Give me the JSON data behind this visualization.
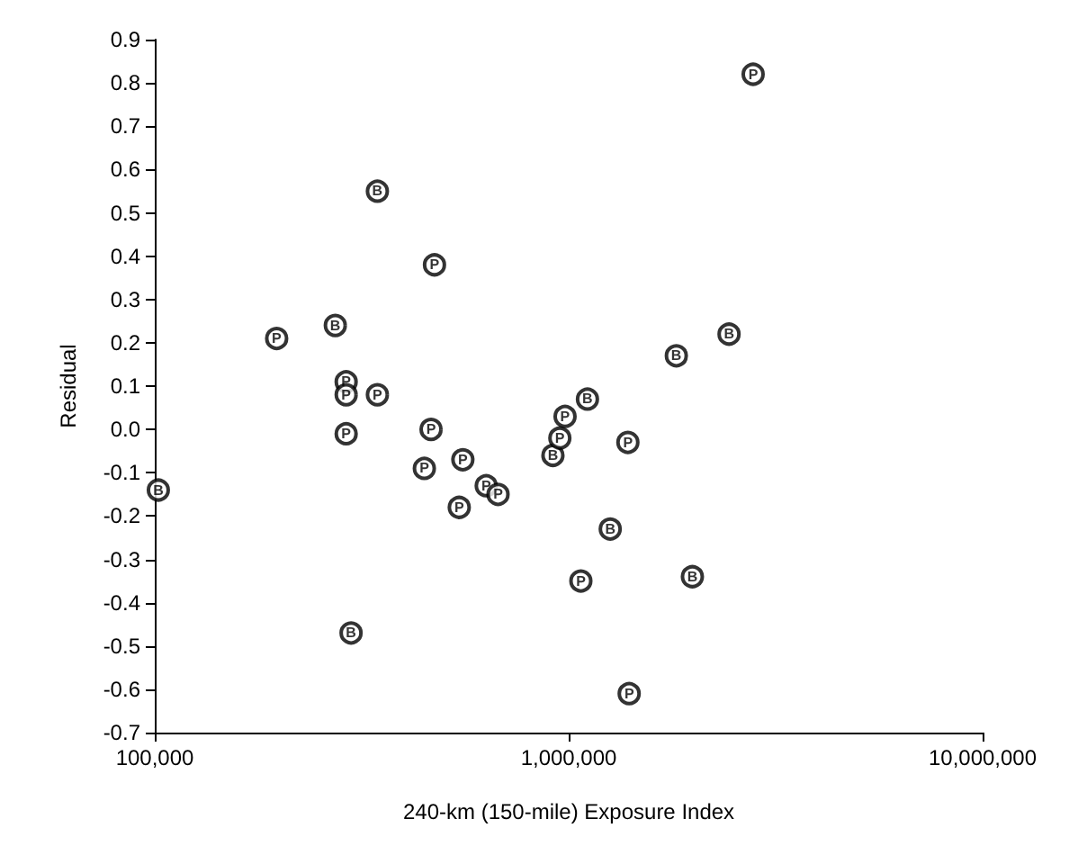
{
  "chart_data": {
    "type": "scatter",
    "xlabel": "240-km (150-mile) Exposure Index",
    "ylabel": "Residual",
    "log": "x",
    "xlim": [
      100000,
      10000000
    ],
    "xticks": [
      {
        "value": 100000,
        "label": "100,000"
      },
      {
        "value": 1000000,
        "label": "1,000,000"
      },
      {
        "value": 10000000,
        "label": "10,000,000"
      }
    ],
    "ylim": [
      -0.7,
      0.9
    ],
    "yticks": [
      -0.7,
      -0.6,
      -0.5,
      -0.4,
      -0.3,
      -0.2,
      -0.1,
      {
        "value": 0,
        "label": "0.0"
      },
      0.1,
      0.2,
      0.3,
      0.4,
      0.5,
      0.6,
      0.7,
      0.8,
      0.9
    ],
    "grid": false,
    "legend": false,
    "series": [
      {
        "name": "B",
        "color": "#000000",
        "x": [
          345000,
          273000,
          102000,
          298000,
          916000,
          1110000,
          1820000,
          2440000,
          1260000,
          1990000
        ],
        "values": [
          0.55,
          0.24,
          -0.14,
          -0.47,
          -0.06,
          0.07,
          0.17,
          0.22,
          -0.23,
          -0.34
        ]
      },
      {
        "name": "P",
        "color": "#000000",
        "x": [
          197000,
          290000,
          290000,
          345000,
          474000,
          290000,
          465000,
          448000,
          555000,
          544000,
          632000,
          675000,
          980000,
          952000,
          1390000,
          1070000,
          1400000,
          2790000
        ],
        "values": [
          0.21,
          0.11,
          0.08,
          0.08,
          0.38,
          -0.01,
          0.0,
          -0.09,
          -0.07,
          -0.18,
          -0.13,
          -0.15,
          0.03,
          -0.02,
          -0.03,
          -0.35,
          -0.61,
          0.82
        ]
      }
    ]
  }
}
